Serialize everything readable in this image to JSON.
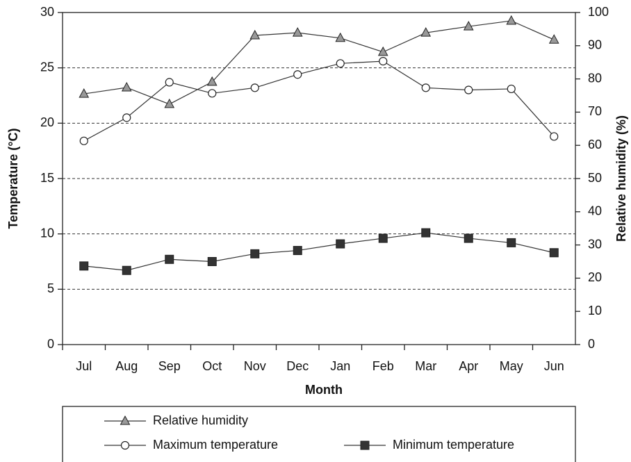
{
  "chart_data": {
    "type": "line",
    "categories": [
      "Jul",
      "Aug",
      "Sep",
      "Oct",
      "Nov",
      "Dec",
      "Jan",
      "Feb",
      "Mar",
      "Apr",
      "May",
      "Jun"
    ],
    "x_label": "Month",
    "y_label": "Temperature (°C)",
    "y2_label": "Relative humidity (%)",
    "ylim": [
      0,
      30
    ],
    "yticks": [
      0,
      5,
      10,
      15,
      20,
      25,
      30
    ],
    "y2lim": [
      0,
      100
    ],
    "y2ticks": [
      0,
      10,
      20,
      30,
      40,
      50,
      60,
      70,
      80,
      90,
      100
    ],
    "grid": true,
    "legend": "bottom",
    "series": [
      {
        "name": "Relative humidity",
        "axis": "y2",
        "marker": "triangle",
        "color": "#999999",
        "values": [
          75.5,
          77.4,
          72.4,
          79.1,
          93.1,
          93.9,
          92.3,
          88.1,
          93.9,
          95.8,
          97.5,
          91.8
        ]
      },
      {
        "name": "Maximum temperature",
        "marker": "circle",
        "color": "#ffffff",
        "values": [
          18.4,
          20.5,
          23.7,
          22.7,
          23.2,
          24.4,
          25.4,
          25.6,
          23.2,
          23.0,
          23.1,
          18.8
        ]
      },
      {
        "name": "Minimum temperature",
        "marker": "square",
        "color": "#333333",
        "values": [
          7.1,
          6.7,
          7.7,
          7.5,
          8.2,
          8.5,
          9.1,
          9.6,
          10.1,
          9.6,
          9.2,
          8.3
        ]
      }
    ]
  }
}
